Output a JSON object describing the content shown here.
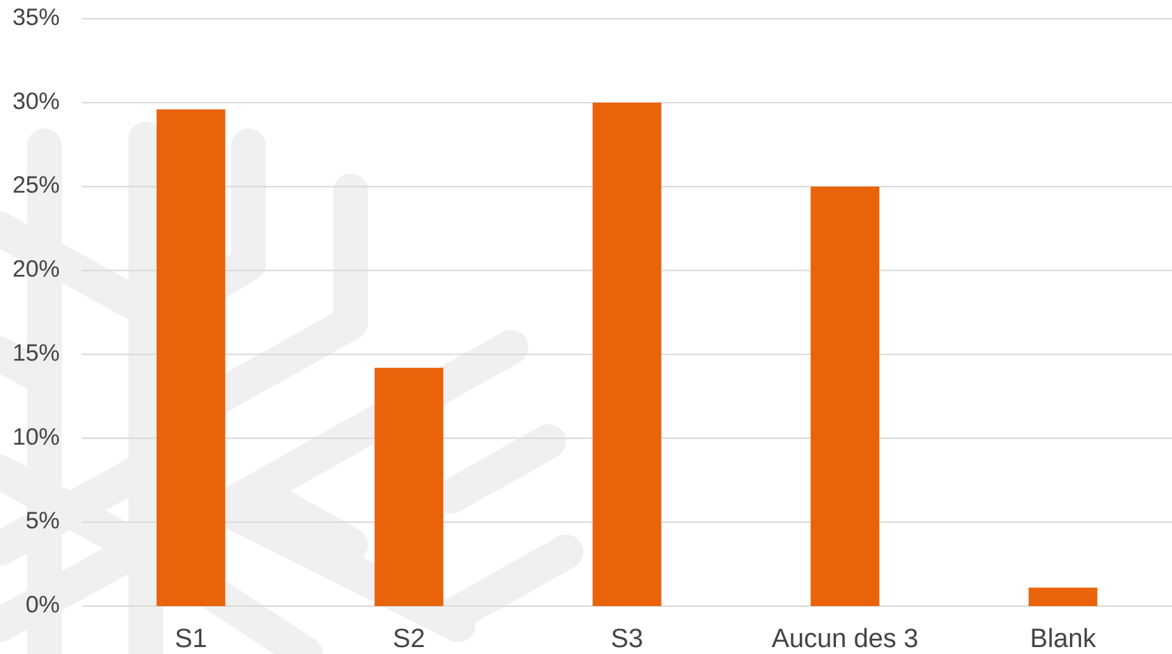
{
  "chart_data": {
    "type": "bar",
    "categories": [
      "S1",
      "S2",
      "S3",
      "Aucun des 3",
      "Blank"
    ],
    "values": [
      29.6,
      14.2,
      30,
      25,
      1.1
    ],
    "color": "#e8630a",
    "ylim": [
      0,
      35
    ],
    "yticks": [
      {
        "value": 0,
        "label": "0%"
      },
      {
        "value": 5,
        "label": "5%"
      },
      {
        "value": 10,
        "label": "10%"
      },
      {
        "value": 15,
        "label": "15%"
      },
      {
        "value": 20,
        "label": "20%"
      },
      {
        "value": 25,
        "label": "25%"
      },
      {
        "value": 30,
        "label": "30%"
      },
      {
        "value": 35,
        "label": "35%"
      }
    ],
    "grid": true
  }
}
